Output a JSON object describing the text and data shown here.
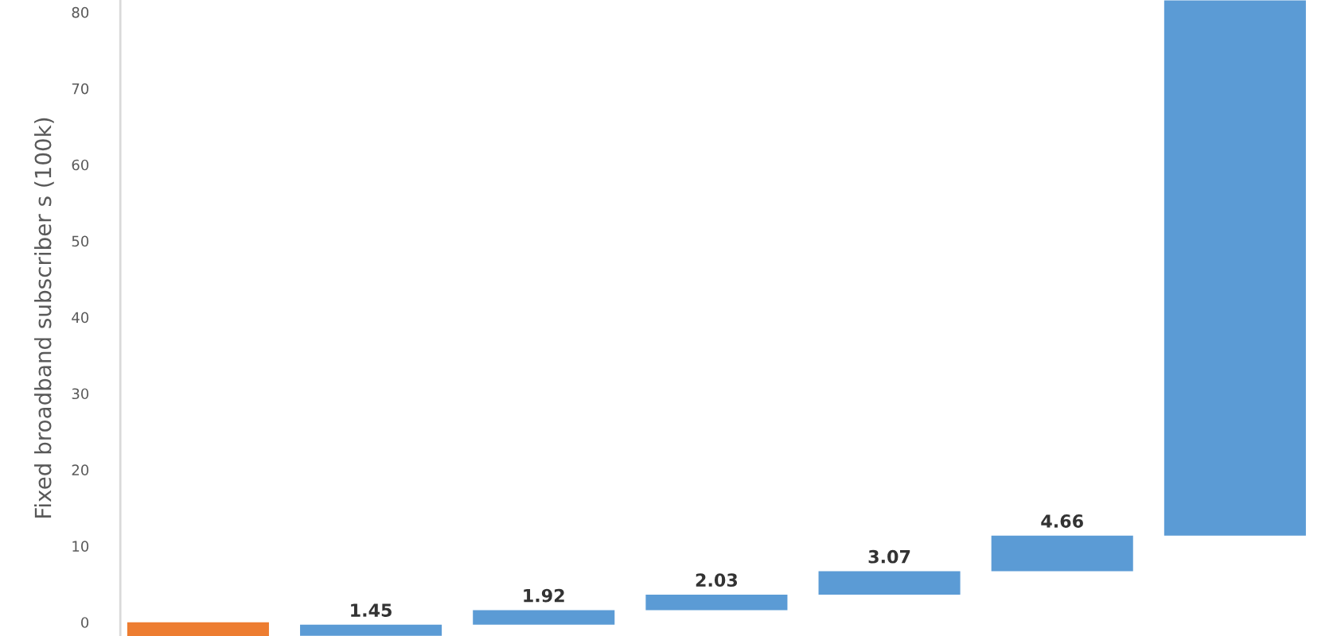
{
  "chart_data": {
    "type": "bar",
    "ylabel": "Fixed broadband subscriber s (100k)",
    "categories": [
      null,
      null,
      null,
      null,
      null,
      null,
      null
    ],
    "values": [
      1.8,
      1.45,
      1.92,
      2.03,
      3.07,
      4.66,
      70.2
    ],
    "base": [
      -1.8,
      -1.77,
      -0.32,
      1.6,
      3.63,
      6.7,
      11.36
    ],
    "colors": [
      "#ed7d31",
      "#5b9bd5",
      "#5b9bd5",
      "#5b9bd5",
      "#5b9bd5",
      "#5b9bd5",
      "#5b9bd5"
    ],
    "value_labels": [
      null,
      "1.45",
      "1.92",
      "2.03",
      "3.07",
      "4.66",
      null
    ],
    "ylim": [
      -1.8,
      81.6
    ],
    "yticks": [
      0,
      10,
      20,
      30,
      40,
      50,
      60,
      70,
      80
    ],
    "grid": false,
    "legend": false
  }
}
